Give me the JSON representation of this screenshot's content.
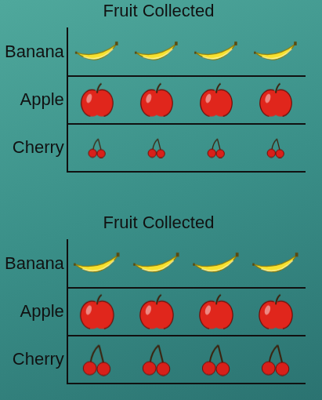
{
  "chart_data": [
    {
      "type": "pictograph",
      "title": "Fruit Collected",
      "categories": [
        "Banana",
        "Apple",
        "Cherry"
      ],
      "values": [
        4,
        4,
        4
      ],
      "grid": true,
      "tick_labels": "y"
    },
    {
      "type": "pictograph",
      "title": "Fruit Collected",
      "categories": [
        "Banana",
        "Apple",
        "Cherry"
      ],
      "values": [
        4,
        4,
        4
      ],
      "grid": true,
      "tick_labels": "y"
    }
  ]
}
